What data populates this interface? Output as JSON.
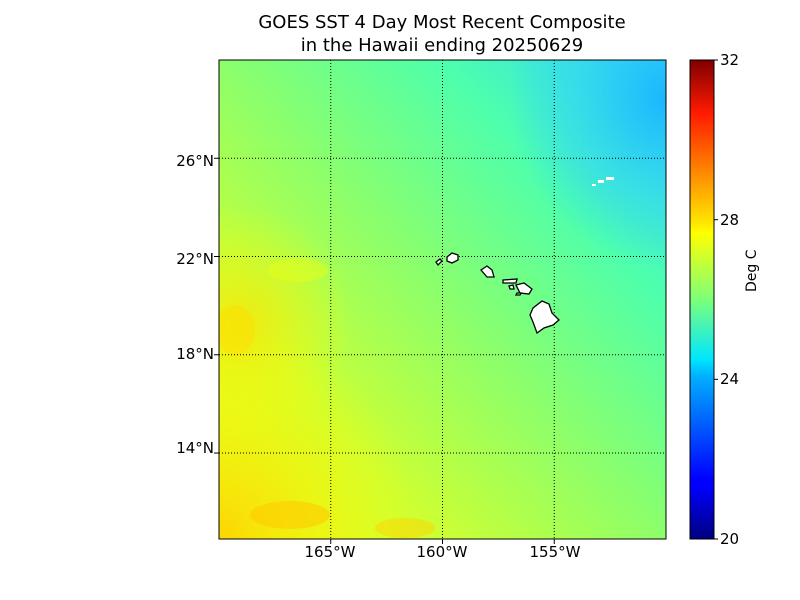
{
  "title": {
    "line1": "GOES SST 4 Day Most Recent Composite",
    "line2": "in the Hawaii ending 20250629"
  },
  "map": {
    "lat_labels": [
      "26°N",
      "22°N",
      "18°N",
      "14°N"
    ],
    "lon_labels": [
      "165°W",
      "160°W",
      "155°W"
    ],
    "grid": true,
    "grid_style": "dotted"
  },
  "colorbar": {
    "label": "Deg C",
    "ticks": [
      "32",
      "28",
      "24",
      "20"
    ],
    "min": 20,
    "max": 32,
    "colormap": "jet",
    "colors": [
      "#00007f",
      "#0000ff",
      "#007fff",
      "#00ffff",
      "#7fff7f",
      "#ffff00",
      "#ff7f00",
      "#ff0000",
      "#7f0000"
    ]
  },
  "chart_data": {
    "type": "heatmap",
    "title": "GOES SST 4 Day Most Recent Composite in the Hawaii ending 20250629",
    "variable": "Sea Surface Temperature",
    "units": "Deg C",
    "color_range": [
      20,
      32
    ],
    "lon_range": [
      -170,
      -150
    ],
    "lat_range": [
      10.5,
      30
    ],
    "lat_ticks": [
      26,
      22,
      18,
      14
    ],
    "lon_ticks": [
      -165,
      -160,
      -155
    ],
    "features": [
      "Hawaiian Islands (land, white)"
    ]
  }
}
